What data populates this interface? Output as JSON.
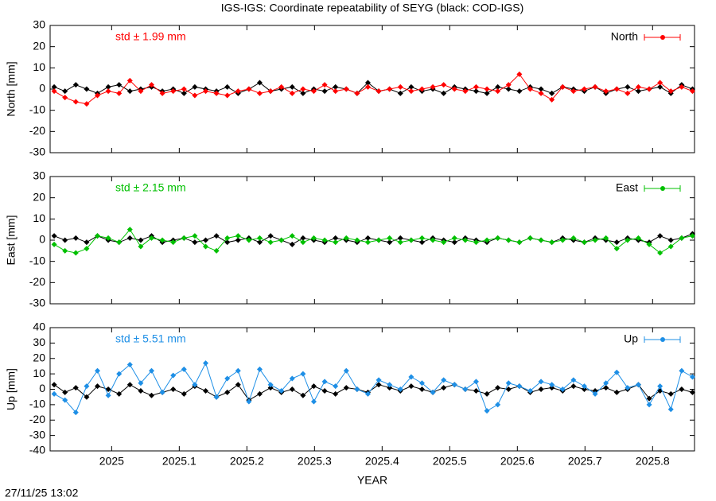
{
  "title": "IGS-IGS: Coordinate repeatability of SEYG (black: COD-IGS)",
  "timestamp": "27/11/25 13:02",
  "chart_data": [
    {
      "type": "line",
      "ylabel": "North [mm]",
      "annotation": "std ± 1.99 mm",
      "legend": "top-right",
      "xlim": [
        2024.909,
        2025.862
      ],
      "xticks": [
        2025,
        2025.1,
        2025.2,
        2025.3,
        2025.4,
        2025.5,
        2025.6,
        2025.7,
        2025.8
      ],
      "ylim": [
        -30,
        30
      ],
      "yticks": [
        -30,
        -20,
        -10,
        0,
        10,
        20,
        30
      ],
      "x": [
        2024.915,
        2024.931,
        2024.947,
        2024.963,
        2024.979,
        2024.995,
        2025.011,
        2025.027,
        2025.043,
        2025.059,
        2025.075,
        2025.091,
        2025.107,
        2025.123,
        2025.139,
        2025.155,
        2025.171,
        2025.187,
        2025.203,
        2025.219,
        2025.235,
        2025.251,
        2025.267,
        2025.283,
        2025.299,
        2025.315,
        2025.331,
        2025.347,
        2025.363,
        2025.379,
        2025.395,
        2025.411,
        2025.427,
        2025.443,
        2025.459,
        2025.475,
        2025.491,
        2025.507,
        2025.523,
        2025.539,
        2025.555,
        2025.571,
        2025.587,
        2025.603,
        2025.619,
        2025.635,
        2025.651,
        2025.667,
        2025.683,
        2025.699,
        2025.715,
        2025.731,
        2025.747,
        2025.763,
        2025.779,
        2025.795,
        2025.811,
        2025.827,
        2025.843,
        2025.859
      ],
      "series": [
        {
          "color": "#000000",
          "values": [
            1,
            -1,
            2,
            0,
            -2,
            1,
            2,
            -1,
            0,
            1,
            -1,
            0,
            -2,
            1,
            0,
            -1,
            1,
            -2,
            0,
            3,
            -1,
            0,
            1,
            -2,
            0,
            -1,
            1,
            0,
            -2,
            3,
            -1,
            0,
            -2,
            1,
            -1,
            0,
            -2,
            1,
            0,
            -1,
            -2,
            1,
            0,
            -1,
            1,
            0,
            -2,
            1,
            0,
            -1,
            1,
            -2,
            0,
            1,
            -1,
            0,
            1,
            -2,
            2,
            0
          ]
        },
        {
          "name": "North",
          "color": "#ff0000",
          "values": [
            -1,
            -4,
            -6,
            -7,
            -3,
            -1,
            -2,
            4,
            -1,
            2,
            -2,
            -1,
            0,
            -3,
            -1,
            -2,
            -3,
            -1,
            0,
            -2,
            -1,
            1,
            -2,
            0,
            -1,
            2,
            -1,
            0,
            -2,
            1,
            -1,
            0,
            1,
            -1,
            0,
            1,
            2,
            0,
            -1,
            1,
            0,
            -1,
            2,
            7,
            0,
            -2,
            -5,
            1,
            -1,
            0,
            1,
            -1,
            0,
            -2,
            1,
            0,
            3,
            -1,
            1,
            -1
          ]
        }
      ]
    },
    {
      "type": "line",
      "ylabel": "East [mm]",
      "annotation": "std ± 2.15 mm",
      "legend": "top-right",
      "xlim": [
        2024.909,
        2025.862
      ],
      "xticks": [
        2025,
        2025.1,
        2025.2,
        2025.3,
        2025.4,
        2025.5,
        2025.6,
        2025.7,
        2025.8
      ],
      "ylim": [
        -30,
        30
      ],
      "yticks": [
        -30,
        -20,
        -10,
        0,
        10,
        20,
        30
      ],
      "x": [
        2024.915,
        2024.931,
        2024.947,
        2024.963,
        2024.979,
        2024.995,
        2025.011,
        2025.027,
        2025.043,
        2025.059,
        2025.075,
        2025.091,
        2025.107,
        2025.123,
        2025.139,
        2025.155,
        2025.171,
        2025.187,
        2025.203,
        2025.219,
        2025.235,
        2025.251,
        2025.267,
        2025.283,
        2025.299,
        2025.315,
        2025.331,
        2025.347,
        2025.363,
        2025.379,
        2025.395,
        2025.411,
        2025.427,
        2025.443,
        2025.459,
        2025.475,
        2025.491,
        2025.507,
        2025.523,
        2025.539,
        2025.555,
        2025.571,
        2025.587,
        2025.603,
        2025.619,
        2025.635,
        2025.651,
        2025.667,
        2025.683,
        2025.699,
        2025.715,
        2025.731,
        2025.747,
        2025.763,
        2025.779,
        2025.795,
        2025.811,
        2025.827,
        2025.843,
        2025.859
      ],
      "series": [
        {
          "color": "#000000",
          "values": [
            2,
            0,
            1,
            -1,
            2,
            0,
            -1,
            1,
            0,
            2,
            -1,
            0,
            1,
            -1,
            0,
            2,
            -1,
            0,
            1,
            -1,
            2,
            0,
            -2,
            1,
            0,
            -1,
            1,
            0,
            -1,
            1,
            0,
            -1,
            1,
            0,
            -1,
            1,
            0,
            -1,
            1,
            0,
            -1,
            1,
            0,
            -1,
            1,
            0,
            -1,
            1,
            0,
            -1,
            1,
            0,
            -1,
            1,
            0,
            -1,
            2,
            0,
            1,
            3
          ]
        },
        {
          "name": "East",
          "color": "#00c000",
          "values": [
            -2,
            -5,
            -6,
            -4,
            2,
            1,
            -1,
            5,
            -3,
            1,
            0,
            -1,
            1,
            2,
            -3,
            -5,
            1,
            2,
            0,
            1,
            -1,
            0,
            2,
            -1,
            1,
            0,
            -1,
            1,
            0,
            -1,
            0,
            1,
            -1,
            0,
            1,
            0,
            -1,
            1,
            0,
            -1,
            0,
            1,
            0,
            -1,
            1,
            0,
            -1,
            0,
            1,
            -1,
            0,
            1,
            -4,
            0,
            1,
            -2,
            -6,
            -3,
            1,
            2
          ]
        }
      ]
    },
    {
      "type": "line",
      "ylabel": "Up [mm]",
      "xlabel": "YEAR",
      "annotation": "std ± 5.51 mm",
      "legend": "top-right",
      "xlim": [
        2024.909,
        2025.862
      ],
      "xticks": [
        2025,
        2025.1,
        2025.2,
        2025.3,
        2025.4,
        2025.5,
        2025.6,
        2025.7,
        2025.8
      ],
      "ylim": [
        -40,
        40
      ],
      "yticks": [
        -40,
        -30,
        -20,
        -10,
        0,
        10,
        20,
        30,
        40
      ],
      "x": [
        2024.915,
        2024.931,
        2024.947,
        2024.963,
        2024.979,
        2024.995,
        2025.011,
        2025.027,
        2025.043,
        2025.059,
        2025.075,
        2025.091,
        2025.107,
        2025.123,
        2025.139,
        2025.155,
        2025.171,
        2025.187,
        2025.203,
        2025.219,
        2025.235,
        2025.251,
        2025.267,
        2025.283,
        2025.299,
        2025.315,
        2025.331,
        2025.347,
        2025.363,
        2025.379,
        2025.395,
        2025.411,
        2025.427,
        2025.443,
        2025.459,
        2025.475,
        2025.491,
        2025.507,
        2025.523,
        2025.539,
        2025.555,
        2025.571,
        2025.587,
        2025.603,
        2025.619,
        2025.635,
        2025.651,
        2025.667,
        2025.683,
        2025.699,
        2025.715,
        2025.731,
        2025.747,
        2025.763,
        2025.779,
        2025.795,
        2025.811,
        2025.827,
        2025.843,
        2025.859
      ],
      "series": [
        {
          "color": "#000000",
          "values": [
            3,
            -2,
            1,
            -5,
            2,
            0,
            -3,
            3,
            -1,
            -4,
            -2,
            0,
            -3,
            2,
            -1,
            -5,
            -2,
            3,
            -7,
            -3,
            1,
            -2,
            0,
            -4,
            2,
            -1,
            -3,
            1,
            0,
            -2,
            3,
            1,
            -1,
            2,
            0,
            -2,
            1,
            3,
            0,
            -1,
            -3,
            1,
            0,
            2,
            -2,
            0,
            1,
            -1,
            2,
            0,
            -1,
            1,
            -2,
            0,
            3,
            -6,
            -1,
            -3,
            0,
            -2
          ]
        },
        {
          "name": "Up",
          "color": "#1e8fe6",
          "values": [
            -3,
            -7,
            -15,
            2,
            12,
            -4,
            10,
            16,
            4,
            12,
            -2,
            9,
            13,
            3,
            17,
            -5,
            7,
            12,
            -8,
            13,
            3,
            -1,
            7,
            10,
            -8,
            5,
            2,
            12,
            0,
            -3,
            6,
            3,
            0,
            8,
            4,
            -2,
            6,
            3,
            0,
            5,
            -14,
            -10,
            4,
            2,
            -1,
            5,
            3,
            0,
            6,
            2,
            -3,
            4,
            11,
            1,
            3,
            -10,
            2,
            -13,
            12,
            8
          ]
        }
      ]
    }
  ]
}
